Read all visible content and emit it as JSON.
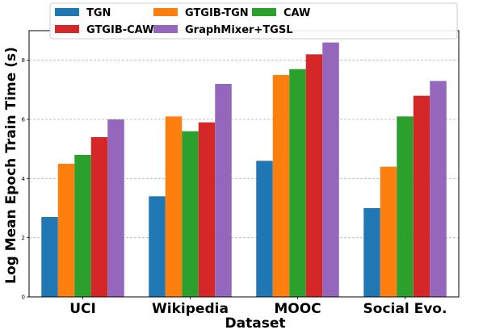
{
  "chart_data": {
    "type": "bar",
    "xlabel": "Dataset",
    "ylabel": "Log Mean Epoch Train Time (s)",
    "categories": [
      "UCI",
      "Wikipedia",
      "MOOC",
      "Social Evo."
    ],
    "ylim": [
      0,
      9
    ],
    "yticks": [
      "0",
      "2",
      "4",
      "6",
      "8"
    ],
    "grid": "horizontal dashed",
    "legend_position": "top",
    "series": [
      {
        "name": "TGN",
        "color": "#1f77b4",
        "values": [
          2.7,
          3.4,
          4.6,
          3.0
        ]
      },
      {
        "name": "GTGIB-TGN",
        "color": "#ff7f0e",
        "values": [
          4.5,
          6.1,
          7.5,
          4.4
        ]
      },
      {
        "name": "CAW",
        "color": "#2ca02c",
        "values": [
          4.8,
          5.6,
          7.7,
          6.1
        ]
      },
      {
        "name": "GTGIB-CAW",
        "color": "#d62728",
        "values": [
          5.4,
          5.9,
          8.2,
          6.8
        ]
      },
      {
        "name": "GraphMixer+TGSL",
        "color": "#9467bd",
        "values": [
          6.0,
          7.2,
          8.6,
          7.3
        ]
      }
    ]
  }
}
